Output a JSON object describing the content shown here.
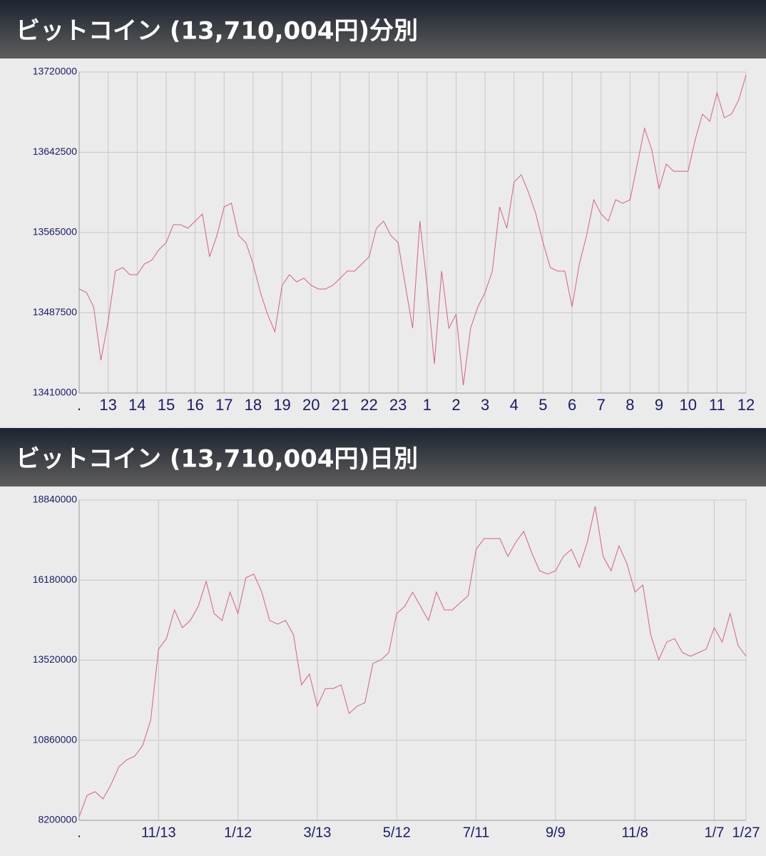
{
  "chart_data": [
    {
      "type": "line",
      "title": "ビットコイン (13,710,004円)分別",
      "color": "#d4608a",
      "grid": true,
      "ylim": [
        13410000,
        13720000
      ],
      "yticks": [
        13410000,
        13487500,
        13565000,
        13642500,
        13720000
      ],
      "xlim": [
        0,
        92
      ],
      "xticks": [
        {
          "value": 0,
          "label": "."
        },
        {
          "value": 4,
          "label": "13"
        },
        {
          "value": 8,
          "label": "14"
        },
        {
          "value": 12,
          "label": "15"
        },
        {
          "value": 16,
          "label": "16"
        },
        {
          "value": 20,
          "label": "17"
        },
        {
          "value": 24,
          "label": "18"
        },
        {
          "value": 28,
          "label": "19"
        },
        {
          "value": 32,
          "label": "20"
        },
        {
          "value": 36,
          "label": "21"
        },
        {
          "value": 40,
          "label": "22"
        },
        {
          "value": 44,
          "label": "23"
        },
        {
          "value": 48,
          "label": "1"
        },
        {
          "value": 52,
          "label": "2"
        },
        {
          "value": 56,
          "label": "3"
        },
        {
          "value": 60,
          "label": "4"
        },
        {
          "value": 64,
          "label": "5"
        },
        {
          "value": 68,
          "label": "6"
        },
        {
          "value": 72,
          "label": "7"
        },
        {
          "value": 76,
          "label": "8"
        },
        {
          "value": 80,
          "label": "9"
        },
        {
          "value": 84,
          "label": "10"
        },
        {
          "value": 88,
          "label": "11"
        },
        {
          "value": 92,
          "label": "12"
        }
      ],
      "values": [
        13510500,
        13507100,
        13493300,
        13441700,
        13479600,
        13527800,
        13531200,
        13524300,
        13524300,
        13534700,
        13538100,
        13548400,
        13555300,
        13572600,
        13572600,
        13569100,
        13576000,
        13582900,
        13541600,
        13562100,
        13589800,
        13593300,
        13562100,
        13555300,
        13534700,
        13507100,
        13486000,
        13469200,
        13514000,
        13524300,
        13517400,
        13520900,
        13514000,
        13510500,
        13510500,
        13514000,
        13520900,
        13527800,
        13527800,
        13534700,
        13541600,
        13569100,
        13576000,
        13562100,
        13555300,
        13514000,
        13472600,
        13576000,
        13514000,
        13438200,
        13527800,
        13472600,
        13486000,
        13417500,
        13472600,
        13493300,
        13507100,
        13527800,
        13589800,
        13569100,
        13613900,
        13620800,
        13603600,
        13582900,
        13555300,
        13531200,
        13527800,
        13527800,
        13493300,
        13534700,
        13562100,
        13596700,
        13582900,
        13576000,
        13596700,
        13593300,
        13596700,
        13631100,
        13665600,
        13644900,
        13607000,
        13631100,
        13624200,
        13624200,
        13624200,
        13655200,
        13679400,
        13672500,
        13700000,
        13675900,
        13679400,
        13693100,
        13717200
      ]
    },
    {
      "type": "line",
      "title": "ビットコイン (13,710,004円)日別",
      "color": "#d4608a",
      "grid": true,
      "ylim": [
        8200000,
        18840000
      ],
      "yticks": [
        8200000,
        10860000,
        13520000,
        16180000,
        18840000
      ],
      "xlim": [
        0,
        84
      ],
      "xticks": [
        {
          "value": 0,
          "label": "."
        },
        {
          "value": 10,
          "label": "11/13"
        },
        {
          "value": 20,
          "label": "1/12"
        },
        {
          "value": 30,
          "label": "3/13"
        },
        {
          "value": 40,
          "label": "5/12"
        },
        {
          "value": 50,
          "label": "7/11"
        },
        {
          "value": 60,
          "label": "9/9"
        },
        {
          "value": 70,
          "label": "11/8"
        },
        {
          "value": 80,
          "label": "1/7"
        },
        {
          "value": 84,
          "label": "1/27"
        }
      ],
      "values": [
        8320000,
        9030000,
        9150000,
        8910000,
        9380000,
        9980000,
        10210000,
        10330000,
        10690000,
        11520000,
        13890000,
        14240000,
        15190000,
        14600000,
        14840000,
        15310000,
        16140000,
        15070000,
        14840000,
        15780000,
        15070000,
        16260000,
        16380000,
        15780000,
        14840000,
        14720000,
        14840000,
        14360000,
        12700000,
        13060000,
        11990000,
        12580000,
        12580000,
        12700000,
        11750000,
        11990000,
        12110000,
        13410000,
        13530000,
        13770000,
        15070000,
        15310000,
        15780000,
        15310000,
        14840000,
        15780000,
        15190000,
        15190000,
        15430000,
        15660000,
        17200000,
        17560000,
        17560000,
        17560000,
        16970000,
        17440000,
        17800000,
        17090000,
        16490000,
        16380000,
        16490000,
        16970000,
        17200000,
        16610000,
        17440000,
        18630000,
        16970000,
        16490000,
        17320000,
        16730000,
        15780000,
        16020000,
        14360000,
        13530000,
        14120000,
        14240000,
        13770000,
        13650000,
        13770000,
        13890000,
        14600000,
        14120000,
        15070000,
        14010000,
        13650000
      ]
    }
  ]
}
